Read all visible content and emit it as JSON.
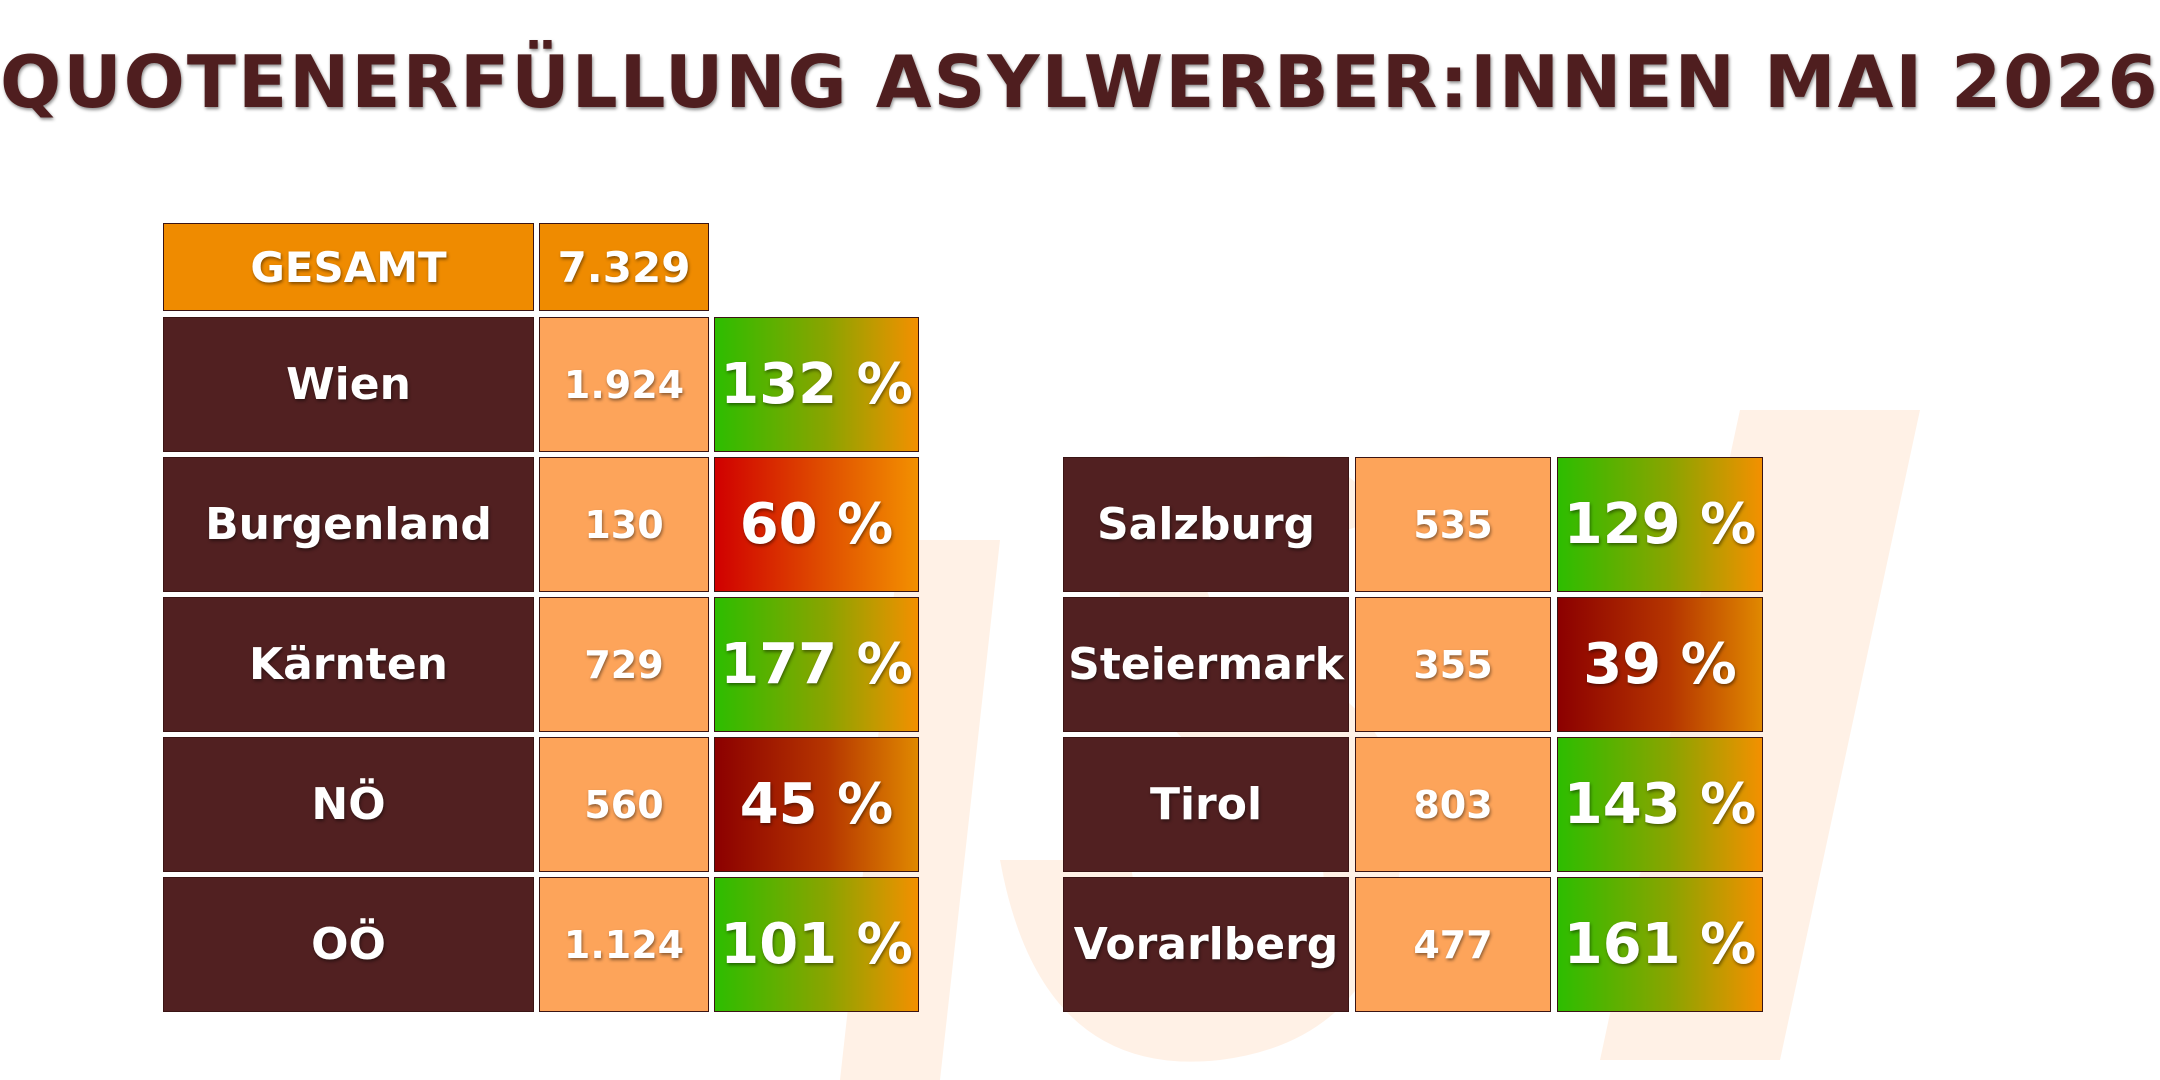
{
  "title": "QUOTENERFÜLLUNG ASYLWERBER:INNEN MAI 2026",
  "colors": {
    "title": "#4f1e1f",
    "label_bg": "#512021",
    "number_bg": "#fda45a",
    "total_bg": "#ef8b00",
    "high": "#2dbd00",
    "low": "#d00000",
    "very_low": "#8c0000",
    "gradient_end": "#f39000"
  },
  "chart_data": {
    "type": "table",
    "total": {
      "label": "GESAMT",
      "value": "7.329"
    },
    "columns": [
      [
        {
          "region": "Wien",
          "value": "1.924",
          "percent": "132 %",
          "level": "green"
        },
        {
          "region": "Burgenland",
          "value": "130",
          "percent": "60 %",
          "level": "red"
        },
        {
          "region": "Kärnten",
          "value": "729",
          "percent": "177 %",
          "level": "green"
        },
        {
          "region": "NÖ",
          "value": "560",
          "percent": "45 %",
          "level": "dkred"
        },
        {
          "region": "OÖ",
          "value": "1.124",
          "percent": "101 %",
          "level": "green"
        }
      ],
      [
        {
          "region": "Salzburg",
          "value": "535",
          "percent": "129 %",
          "level": "green"
        },
        {
          "region": "Steiermark",
          "value": "355",
          "percent": "39 %",
          "level": "dkred"
        },
        {
          "region": "Tirol",
          "value": "803",
          "percent": "143 %",
          "level": "green"
        },
        {
          "region": "Vorarlberg",
          "value": "477",
          "percent": "161 %",
          "level": "green"
        }
      ]
    ]
  }
}
